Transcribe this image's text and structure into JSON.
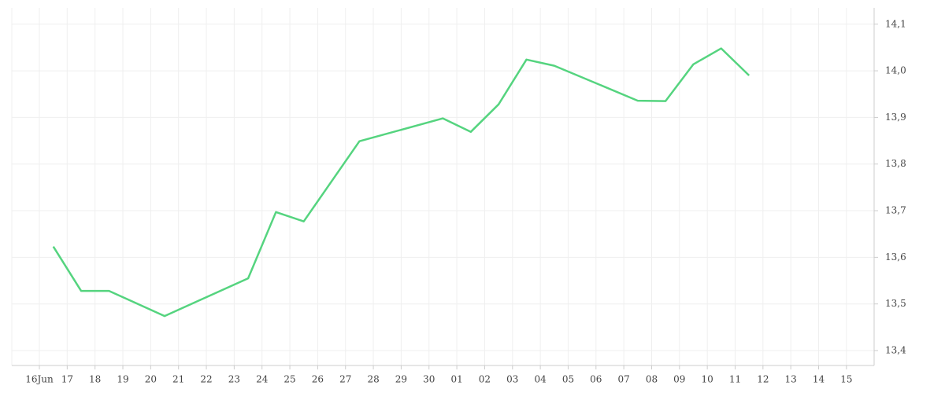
{
  "chart_data": {
    "type": "line",
    "categories": [
      "16Jun",
      "17",
      "18",
      "19",
      "20",
      "21",
      "22",
      "23",
      "24",
      "25",
      "26",
      "27",
      "28",
      "29",
      "30",
      "01",
      "02",
      "03",
      "04",
      "05",
      "06",
      "07",
      "08",
      "09",
      "10",
      "11",
      "12",
      "13",
      "14",
      "15"
    ],
    "x": [
      "16Jun",
      "17",
      "18",
      "20",
      "23",
      "24",
      "25",
      "27",
      "30",
      "01",
      "02",
      "03",
      "04",
      "07",
      "08",
      "09",
      "10",
      "11"
    ],
    "series": [
      {
        "color": "#55d47f",
        "values": [
          13.623,
          13.528,
          13.528,
          13.474,
          13.555,
          13.697,
          13.677,
          13.849,
          13.898,
          13.869,
          13.928,
          14.024,
          14.011,
          13.936,
          13.935,
          14.014,
          14.048,
          13.99
        ]
      }
    ],
    "ylim": [
      13.368,
      14.135
    ],
    "yticks": [
      {
        "value": 13.4,
        "label": "13,4"
      },
      {
        "value": 13.5,
        "label": "13,5"
      },
      {
        "value": 13.6,
        "label": "13,6"
      },
      {
        "value": 13.7,
        "label": "13,7"
      },
      {
        "value": 13.8,
        "label": "13,8"
      },
      {
        "value": 13.9,
        "label": "13,9"
      },
      {
        "value": 14.0,
        "label": "14,0"
      },
      {
        "value": 14.1,
        "label": "14,1"
      }
    ],
    "grid": true
  }
}
